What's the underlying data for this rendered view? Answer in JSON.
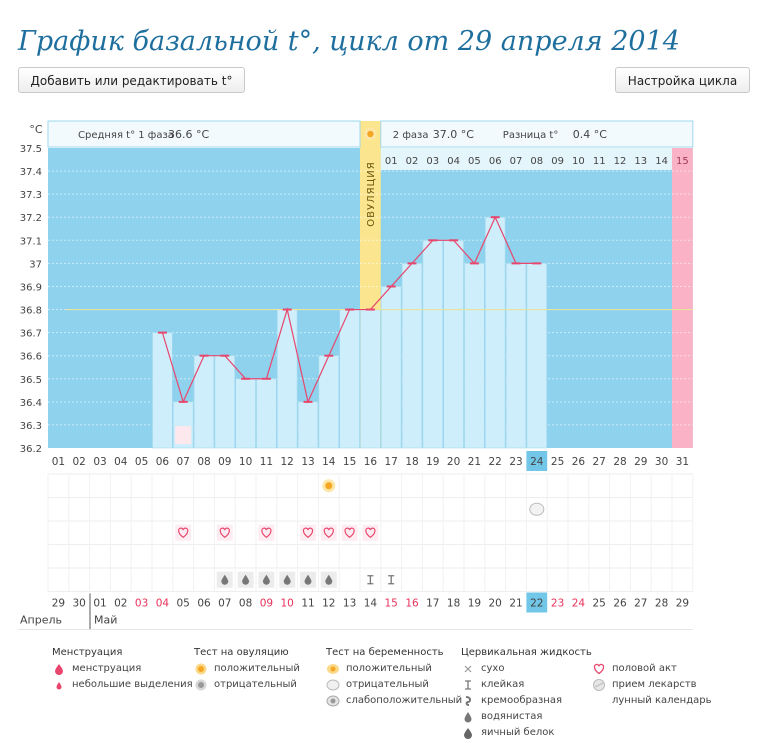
{
  "page": {
    "title": "График базальной t°, цикл от 29 апреля 2014",
    "add_button_label": "Добавить или редактировать t°",
    "cycle_settings_button_label": "Настройка цикла"
  },
  "chart_data": {
    "type": "line",
    "title": "График базальной t°, цикл от 29 апреля 2014",
    "ylabel": "°C",
    "xlabel": "",
    "ylim": [
      36.2,
      37.5
    ],
    "y_ticks": [
      "37.5",
      "37.4",
      "37.3",
      "37.2",
      "37.1",
      "37",
      "36.9",
      "36.8",
      "36.7",
      "36.6",
      "36.5",
      "36.4",
      "36.3",
      "36.2"
    ],
    "cycle_days": [
      "01",
      "02",
      "03",
      "04",
      "05",
      "06",
      "07",
      "08",
      "09",
      "10",
      "11",
      "12",
      "13",
      "14",
      "15",
      "16",
      "17",
      "18",
      "19",
      "20",
      "21",
      "22",
      "23",
      "24",
      "25",
      "26",
      "27",
      "28",
      "29",
      "30",
      "31"
    ],
    "temperatures": [
      null,
      null,
      null,
      null,
      null,
      36.7,
      36.4,
      36.6,
      36.6,
      36.5,
      36.5,
      36.8,
      36.4,
      36.6,
      36.8,
      36.8,
      36.9,
      37.0,
      37.1,
      37.1,
      37.0,
      37.2,
      37.0,
      37.0,
      null,
      null,
      null,
      null,
      null,
      null,
      null
    ],
    "coverline": 36.8,
    "ovulation_day": 16,
    "ovulation_label": "ОВУЛЯЦИЯ",
    "current_day": 24,
    "next_cycle_day": 31,
    "phase1_label": "Средняя t° 1 фаза",
    "phase1_value": "36.6 °C",
    "phase2_label": "2 фаза",
    "phase2_value": "37.0 °C",
    "difference_label": "Разница t°",
    "difference_value": "0.4 °C",
    "phase2_days": [
      "01",
      "02",
      "03",
      "04",
      "05",
      "06",
      "07",
      "08",
      "09",
      "10",
      "11",
      "12",
      "13",
      "14"
    ],
    "next_cycle_label": "15",
    "calendar_dates": [
      "29",
      "30",
      "01",
      "02",
      "03",
      "04",
      "05",
      "06",
      "07",
      "08",
      "09",
      "10",
      "11",
      "12",
      "13",
      "14",
      "15",
      "16",
      "17",
      "18",
      "19",
      "20",
      "21",
      "22",
      "23",
      "24",
      "25",
      "26",
      "27",
      "28",
      "29"
    ],
    "weekend_date_indices": [
      4,
      5,
      10,
      11,
      16,
      17,
      24,
      25
    ],
    "month_april": "Апрель",
    "month_may": "Май",
    "marks": {
      "lunar": [
        7
      ],
      "ovulation_test_positive": [
        14
      ],
      "pregnancy_test_negative": [
        24
      ],
      "intercourse": [
        7,
        9,
        11,
        13,
        14,
        15,
        16
      ],
      "watery": [
        9,
        10,
        11,
        12,
        13,
        14
      ],
      "sticky": [
        16,
        17
      ]
    },
    "palette": {
      "sky": "#8ed2ee",
      "bar": "#cdeefa",
      "bar_border": "#a3d9ef",
      "ovulation": "#fbe58e",
      "next_cycle": "#fab2c7",
      "line": "#e8466d",
      "coverline": "#e8e39a",
      "current": "#72c6e8",
      "header_bg": "#f2fafd",
      "header_border": "#9fd8ee",
      "weekend": "#e8315a"
    }
  },
  "legend": {
    "menstruation": {
      "title": "Менструация",
      "items": [
        "менструация",
        "небольшие выделения"
      ]
    },
    "ovulation_test": {
      "title": "Тест на овуляцию",
      "items": [
        "положительный",
        "отрицательный"
      ]
    },
    "pregnancy_test": {
      "title": "Тест на беременность",
      "items": [
        "положительный",
        "отрицательный",
        "слабоположительный"
      ]
    },
    "cervical": {
      "title": "Цервикальная жидкость",
      "items": [
        "сухо",
        "клейкая",
        "кремообразная",
        "водянистая",
        "яичный белок"
      ]
    },
    "other": {
      "items": [
        "половой акт",
        "прием лекарств",
        "лунный календарь"
      ]
    }
  }
}
